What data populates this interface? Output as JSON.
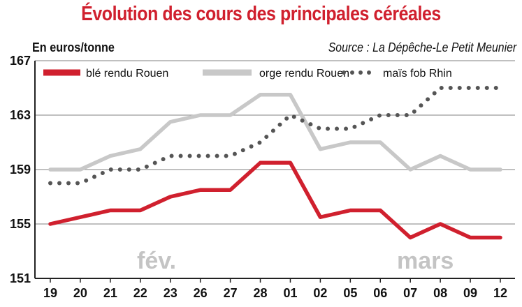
{
  "title": "Évolution des cours des principales céréales",
  "unit_label": "En euros/tonne",
  "source": "Source : La Dépêche-Le Petit Meunier",
  "period_labels": {
    "first": "fév.",
    "second": "mars"
  },
  "colors": {
    "ble": "#d0202e",
    "orge": "#c8c8c8",
    "mais": "#555555",
    "grid": "#9a9a9a",
    "axis": "#222222",
    "period": "#c4c4c4"
  },
  "chart_data": {
    "type": "line",
    "x": [
      "19",
      "20",
      "21",
      "22",
      "23",
      "26",
      "27",
      "28",
      "01",
      "02",
      "05",
      "06",
      "07",
      "08",
      "09",
      "12"
    ],
    "ylim": [
      151,
      167
    ],
    "yticks": [
      151,
      155,
      159,
      163,
      167
    ],
    "grid": true,
    "legend_position": "top",
    "series": [
      {
        "name": "blé rendu Rouen",
        "style": "solid",
        "color": "#d0202e",
        "values": [
          155.0,
          155.5,
          156.0,
          156.0,
          157.0,
          157.5,
          157.5,
          159.5,
          159.5,
          155.5,
          156.0,
          156.0,
          154.0,
          155.0,
          154.0,
          154.0
        ]
      },
      {
        "name": "orge rendu Rouen",
        "style": "solid",
        "color": "#c8c8c8",
        "values": [
          159.0,
          159.0,
          160.0,
          160.5,
          162.5,
          163.0,
          163.0,
          164.5,
          164.5,
          160.5,
          161.0,
          161.0,
          159.0,
          160.0,
          159.0,
          159.0
        ]
      },
      {
        "name": "maïs fob Rhin",
        "style": "dotted",
        "color": "#555555",
        "values": [
          158.0,
          158.0,
          159.0,
          159.0,
          160.0,
          160.0,
          160.0,
          161.0,
          163.0,
          162.0,
          162.0,
          163.0,
          163.0,
          165.0,
          165.0,
          165.0
        ]
      }
    ]
  }
}
